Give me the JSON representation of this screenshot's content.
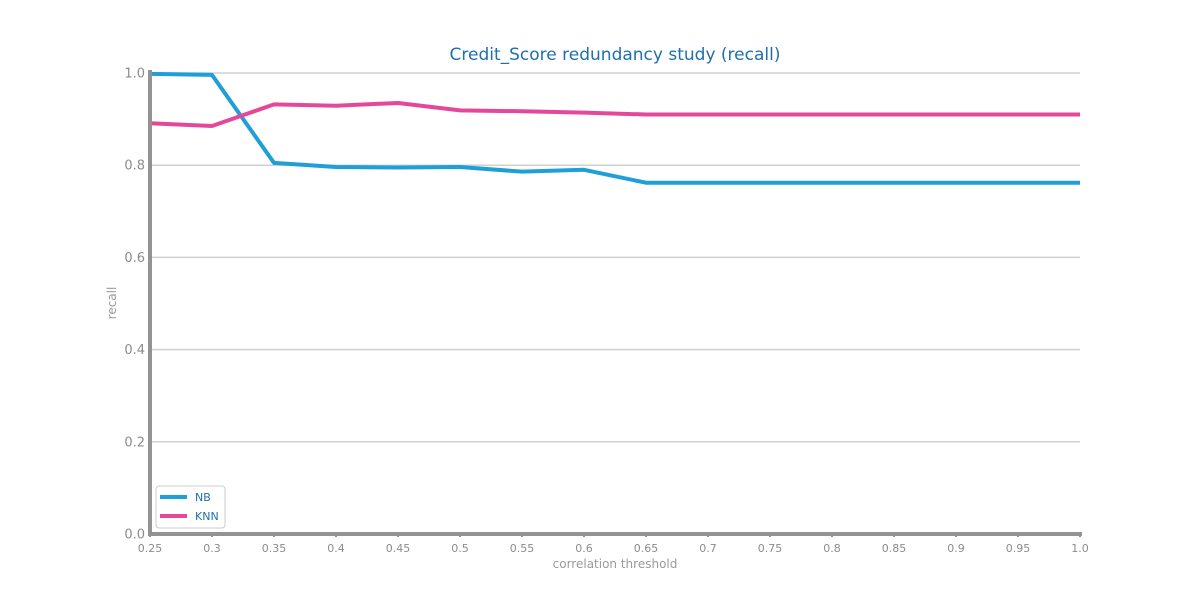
{
  "chart_data": {
    "type": "line",
    "title": "Credit_Score redundancy study (recall)",
    "xlabel": "correlation threshold",
    "ylabel": "recall",
    "x": [
      0.25,
      0.3,
      0.35,
      0.4,
      0.45,
      0.5,
      0.55,
      0.6,
      0.65,
      0.7,
      0.75,
      0.8,
      0.85,
      0.9,
      0.95,
      1.0
    ],
    "x_tick_labels": [
      "0.25",
      "0.3",
      "0.35",
      "0.4",
      "0.45",
      "0.5",
      "0.55",
      "0.6",
      "0.65",
      "0.7",
      "0.75",
      "0.8",
      "0.85",
      "0.9",
      "0.95",
      "1.0"
    ],
    "y_ticks": [
      0.0,
      0.2,
      0.4,
      0.6,
      0.8,
      1.0
    ],
    "y_tick_labels": [
      "0.0",
      "0.2",
      "0.4",
      "0.6",
      "0.8",
      "1.0"
    ],
    "xlim": [
      0.25,
      1.0
    ],
    "ylim": [
      0.0,
      1.0
    ],
    "grid": "horizontal",
    "legend_position": "lower-left",
    "series": [
      {
        "name": "NB",
        "color": "#1f9fd8",
        "values": [
          0.998,
          0.996,
          0.805,
          0.796,
          0.795,
          0.796,
          0.786,
          0.79,
          0.762,
          0.762,
          0.762,
          0.762,
          0.762,
          0.762,
          0.762,
          0.762
        ]
      },
      {
        "name": "KNN",
        "color": "#e5489a",
        "values": [
          0.891,
          0.885,
          0.932,
          0.929,
          0.935,
          0.919,
          0.917,
          0.914,
          0.91,
          0.91,
          0.91,
          0.91,
          0.91,
          0.91,
          0.91,
          0.91
        ]
      }
    ]
  }
}
